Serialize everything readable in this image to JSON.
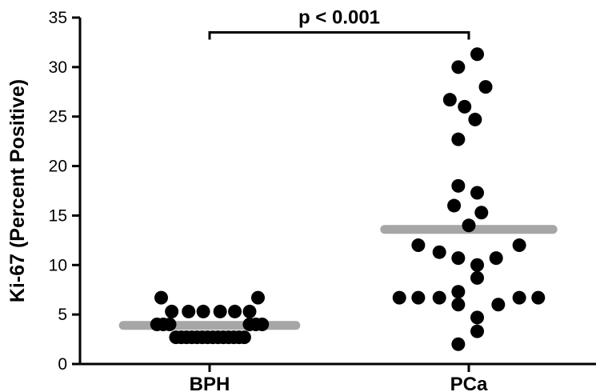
{
  "chart_data": {
    "type": "scatter",
    "ylabel": "Ki-67 (Percent Positive)",
    "xlabel": "",
    "ylim": [
      0,
      35
    ],
    "yticks": [
      0,
      5,
      10,
      15,
      20,
      25,
      30,
      35
    ],
    "grid": false,
    "legend": "none",
    "categories": [
      "BPH",
      "PCa"
    ],
    "point_color": "#000000",
    "mean_color": "#a6a6a6",
    "groups": [
      {
        "category": "BPH",
        "mean": 3.9,
        "points": [
          {
            "dx": -0.23,
            "y": 6.7
          },
          {
            "dx": 0.23,
            "y": 6.7
          },
          {
            "dx": -0.25,
            "y": 4.0
          },
          {
            "dx": -0.22,
            "y": 4.0
          },
          {
            "dx": -0.19,
            "y": 4.0
          },
          {
            "dx": 0.19,
            "y": 4.0
          },
          {
            "dx": 0.22,
            "y": 4.0
          },
          {
            "dx": 0.25,
            "y": 4.0
          },
          {
            "dx": -0.18,
            "y": 5.3
          },
          {
            "dx": -0.1,
            "y": 5.3
          },
          {
            "dx": -0.03,
            "y": 5.3
          },
          {
            "dx": 0.05,
            "y": 5.3
          },
          {
            "dx": 0.12,
            "y": 5.3
          },
          {
            "dx": 0.19,
            "y": 5.3
          },
          {
            "dx": -0.16,
            "y": 2.7
          },
          {
            "dx": -0.135,
            "y": 2.7
          },
          {
            "dx": -0.11,
            "y": 2.7
          },
          {
            "dx": -0.085,
            "y": 2.7
          },
          {
            "dx": -0.06,
            "y": 2.7
          },
          {
            "dx": -0.035,
            "y": 2.7
          },
          {
            "dx": -0.01,
            "y": 2.7
          },
          {
            "dx": 0.015,
            "y": 2.7
          },
          {
            "dx": 0.04,
            "y": 2.7
          },
          {
            "dx": 0.065,
            "y": 2.7
          },
          {
            "dx": 0.09,
            "y": 2.7
          },
          {
            "dx": 0.115,
            "y": 2.7
          },
          {
            "dx": 0.14,
            "y": 2.7
          },
          {
            "dx": 0.165,
            "y": 2.7
          }
        ]
      },
      {
        "category": "PCa",
        "mean": 13.6,
        "points": [
          {
            "dx": 0.04,
            "y": 31.3
          },
          {
            "dx": -0.05,
            "y": 30.0
          },
          {
            "dx": 0.08,
            "y": 28.0
          },
          {
            "dx": -0.09,
            "y": 26.7
          },
          {
            "dx": -0.02,
            "y": 26.0
          },
          {
            "dx": 0.03,
            "y": 24.7
          },
          {
            "dx": -0.05,
            "y": 22.7
          },
          {
            "dx": -0.05,
            "y": 18.0
          },
          {
            "dx": 0.04,
            "y": 17.3
          },
          {
            "dx": -0.07,
            "y": 16.0
          },
          {
            "dx": 0.06,
            "y": 15.3
          },
          {
            "dx": 0.0,
            "y": 14.0
          },
          {
            "dx": -0.24,
            "y": 12.0
          },
          {
            "dx": 0.24,
            "y": 12.0
          },
          {
            "dx": -0.14,
            "y": 11.3
          },
          {
            "dx": -0.05,
            "y": 10.7
          },
          {
            "dx": 0.13,
            "y": 10.7
          },
          {
            "dx": 0.04,
            "y": 10.0
          },
          {
            "dx": 0.04,
            "y": 8.7
          },
          {
            "dx": -0.05,
            "y": 7.3
          },
          {
            "dx": -0.33,
            "y": 6.7
          },
          {
            "dx": -0.24,
            "y": 6.7
          },
          {
            "dx": -0.14,
            "y": 6.7
          },
          {
            "dx": 0.24,
            "y": 6.7
          },
          {
            "dx": 0.33,
            "y": 6.7
          },
          {
            "dx": -0.05,
            "y": 6.0
          },
          {
            "dx": 0.14,
            "y": 6.0
          },
          {
            "dx": 0.04,
            "y": 4.7
          },
          {
            "dx": 0.04,
            "y": 3.3
          },
          {
            "dx": -0.05,
            "y": 2.0
          }
        ]
      }
    ],
    "annotations": [
      {
        "text": "p < 0.001",
        "between": [
          "BPH",
          "PCa"
        ],
        "y": 33.5
      }
    ]
  }
}
